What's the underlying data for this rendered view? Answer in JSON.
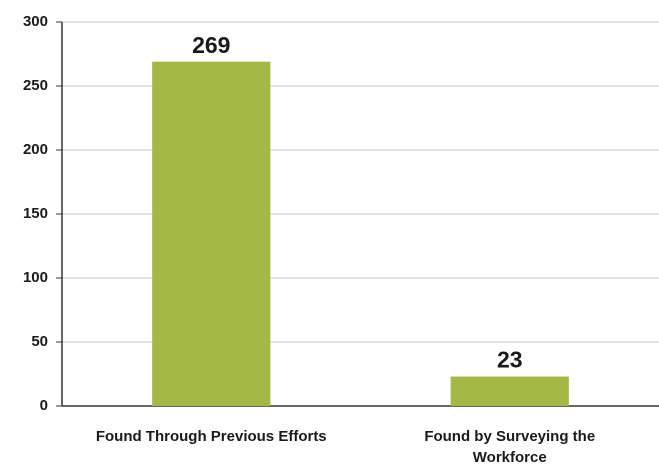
{
  "chart_data": {
    "type": "bar",
    "categories": [
      "Found Through Previous Efforts",
      "Found by Surveying the Workforce"
    ],
    "values": [
      269,
      23
    ],
    "color": "#a4b846",
    "ylim": [
      0,
      300
    ],
    "yticks": [
      0,
      50,
      100,
      150,
      200,
      250,
      300
    ],
    "grid": true
  }
}
